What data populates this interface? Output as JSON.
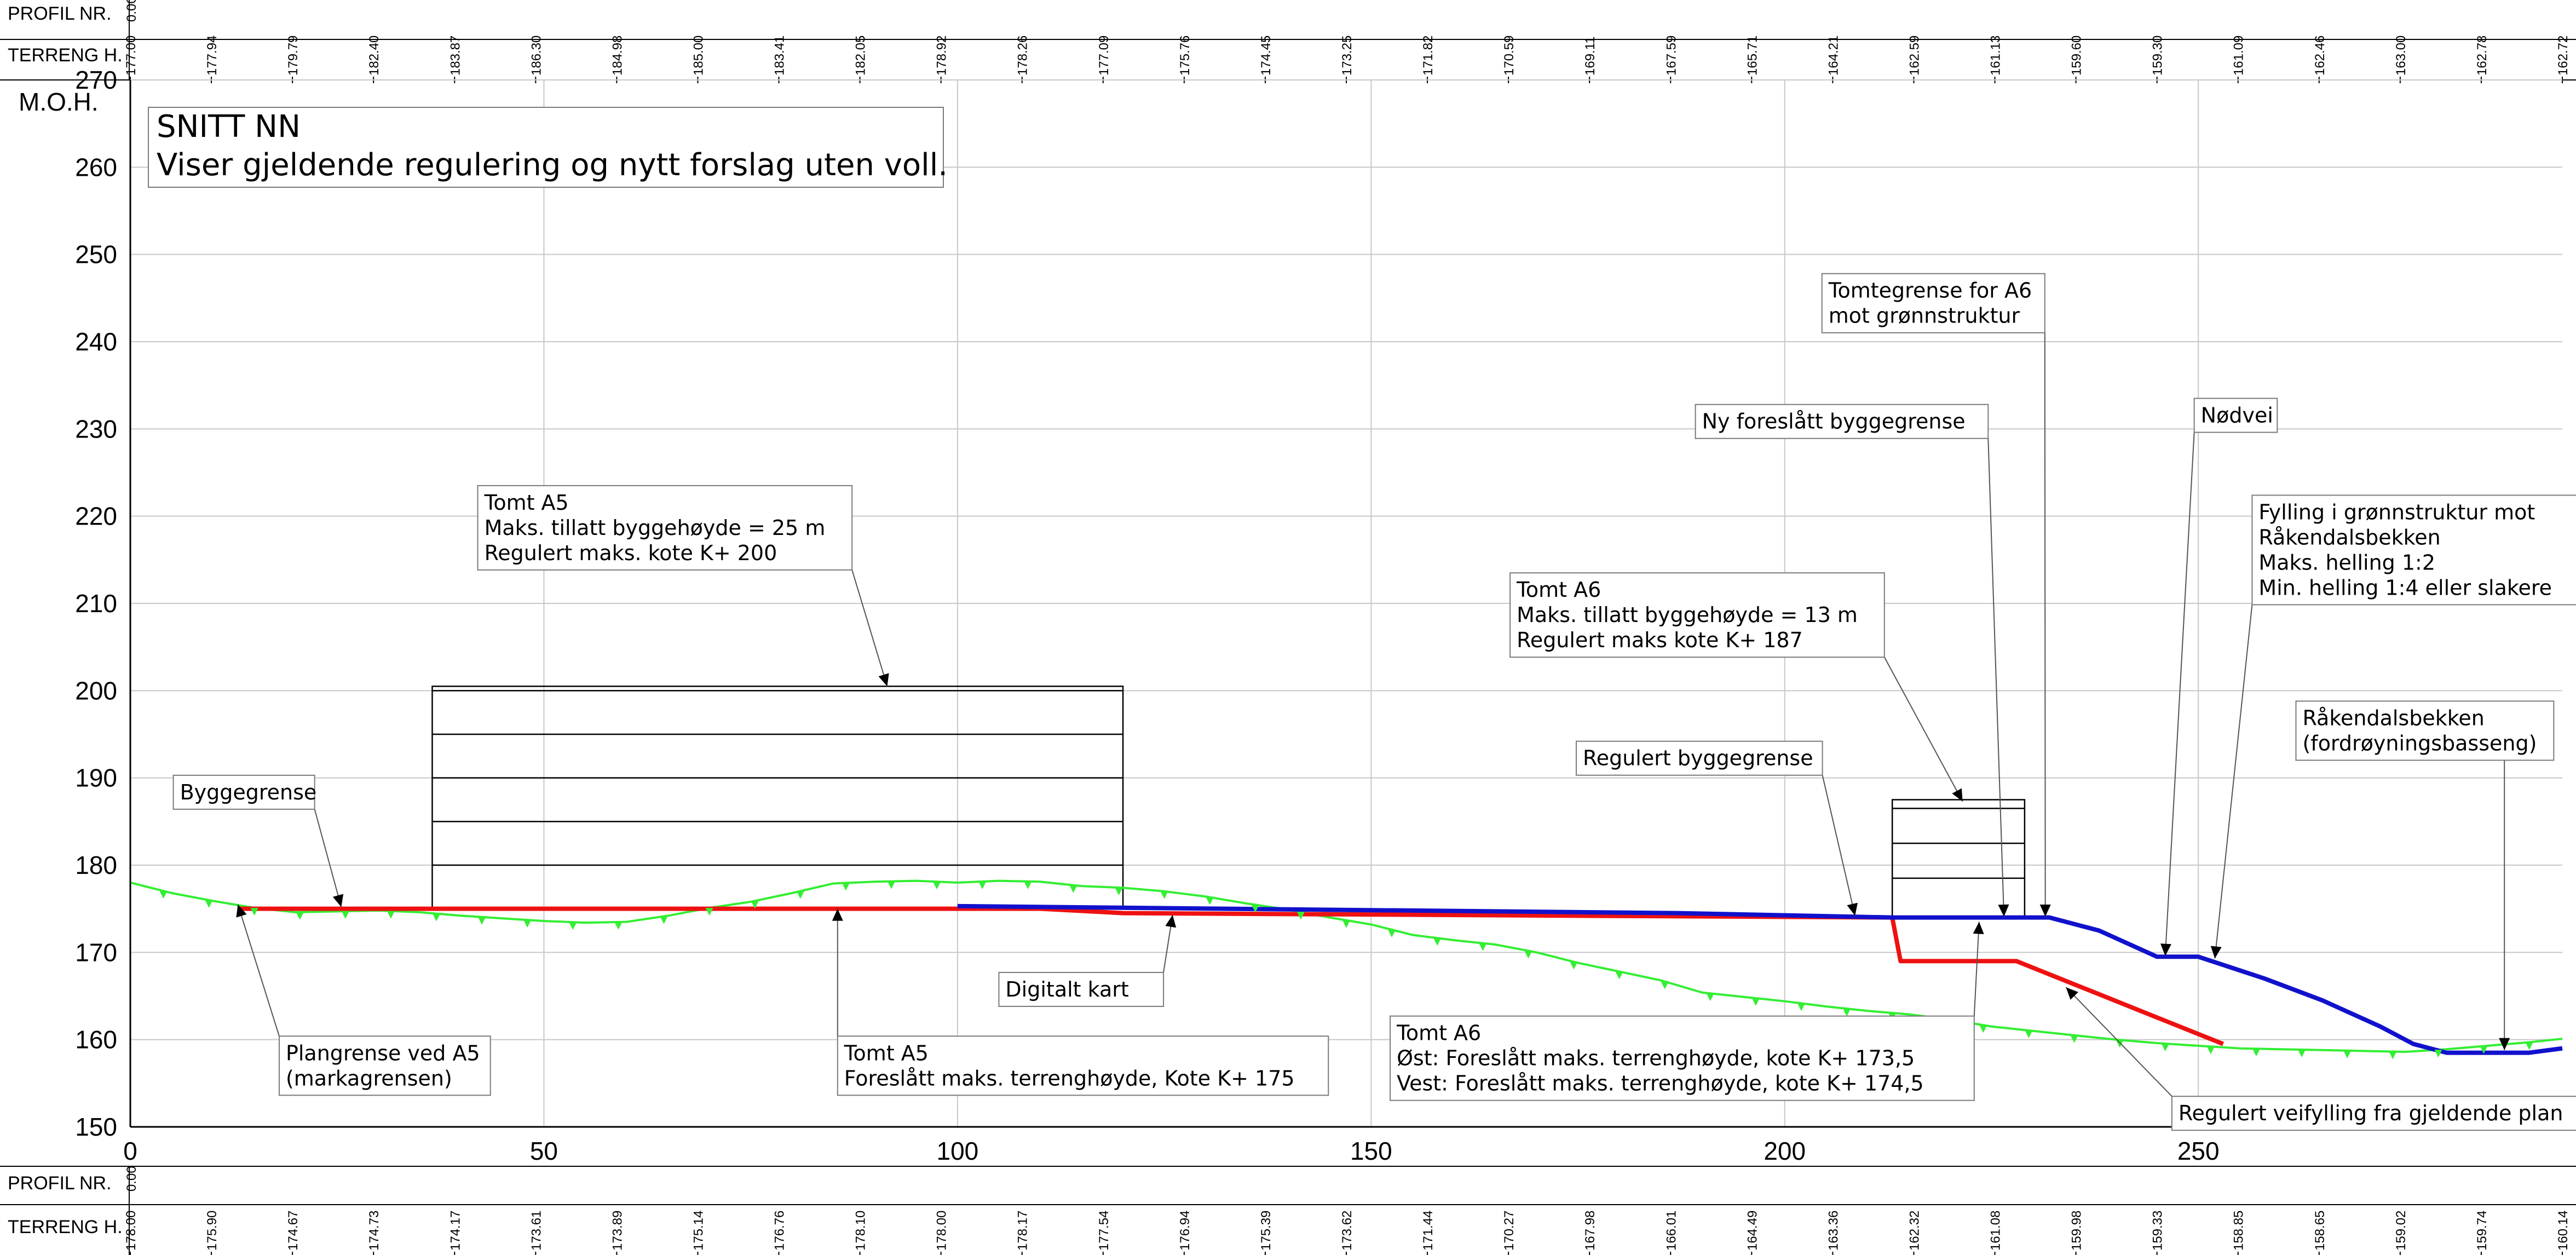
{
  "header_top": {
    "profil_label": "PROFIL NR.",
    "terreng_label": "TERRENG H.",
    "profil_value": "0.00",
    "terrain_values": [
      "177.00",
      "177.94",
      "179.79",
      "182.40",
      "183.87",
      "186.30",
      "184.98",
      "185.00",
      "183.41",
      "182.05",
      "178.92",
      "178.26",
      "177.09",
      "175.76",
      "174.45",
      "173.25",
      "171.82",
      "170.59",
      "169.11",
      "167.59",
      "165.71",
      "164.21",
      "162.59",
      "161.13",
      "159.60",
      "159.30",
      "161.09",
      "162.46",
      "163.00",
      "162.78",
      "162.72"
    ]
  },
  "header_bottom": {
    "profil_label": "PROFIL NR.",
    "terreng_label": "TERRENG H.",
    "profil_value": "0.00",
    "terrain_values": [
      "178.00",
      "175.90",
      "174.67",
      "174.73",
      "174.17",
      "173.61",
      "173.89",
      "175.14",
      "176.76",
      "178.10",
      "178.00",
      "178.17",
      "177.54",
      "176.94",
      "175.39",
      "173.62",
      "171.44",
      "170.27",
      "167.98",
      "166.01",
      "164.49",
      "163.36",
      "162.32",
      "161.08",
      "159.98",
      "159.33",
      "158.85",
      "158.65",
      "159.02",
      "159.74",
      "160.14"
    ]
  },
  "y_axis_title": "M.O.H.",
  "title_box": {
    "line1": "SNITT NN",
    "line2": "Viser gjeldende regulering og nytt forslag uten voll."
  },
  "chart_data": {
    "type": "line",
    "xlim": [
      0,
      294
    ],
    "ylim": [
      150,
      270
    ],
    "x_ticks": [
      0,
      50,
      100,
      150,
      200,
      250
    ],
    "y_ticks": [
      150,
      160,
      170,
      180,
      190,
      200,
      210,
      220,
      230,
      240,
      250,
      260,
      270
    ],
    "grid": true,
    "colors": {
      "terrain": "#33ee33",
      "regulated": "#ee1111",
      "proposed": "#1111cc",
      "frame": "#000000",
      "grid": "#c8c8c8"
    },
    "series": [
      {
        "name": "",
        "color": "#33ee33",
        "x": [
          0,
          5,
          10,
          15,
          20,
          25,
          30,
          35,
          40,
          45,
          50,
          55,
          60,
          65,
          70,
          75,
          80,
          85,
          90,
          95,
          100,
          105,
          110,
          115,
          120,
          125,
          130,
          135,
          140,
          145,
          150,
          155,
          160,
          165,
          170,
          175,
          180,
          185,
          190,
          195,
          200,
          205,
          210,
          215,
          220,
          225,
          230,
          235,
          240,
          245,
          250,
          255,
          260,
          265,
          270,
          275,
          280,
          285,
          290,
          294
        ],
        "y": [
          178.0,
          176.8,
          175.9,
          175.1,
          174.6,
          174.7,
          174.8,
          174.6,
          174.2,
          173.9,
          173.6,
          173.4,
          173.5,
          174.2,
          175.1,
          175.8,
          176.8,
          177.9,
          178.1,
          178.2,
          178.0,
          178.2,
          178.1,
          177.6,
          177.4,
          177.0,
          176.4,
          175.6,
          174.9,
          174.0,
          173.2,
          172.0,
          171.4,
          170.9,
          170.0,
          168.8,
          167.8,
          166.8,
          165.4,
          164.9,
          164.4,
          163.8,
          163.3,
          162.9,
          162.3,
          161.5,
          161.0,
          160.5,
          160.0,
          159.6,
          159.3,
          159.0,
          158.9,
          158.8,
          158.7,
          158.6,
          158.9,
          159.3,
          159.7,
          160.1
        ]
      },
      {
        "name": "",
        "color": "#ee1111",
        "x": [
          13,
          110,
          120,
          213,
          214,
          228,
          253
        ],
        "y": [
          175,
          175,
          174.5,
          174.0,
          169.0,
          169.0,
          159.5
        ]
      },
      {
        "name": "",
        "color": "#1111cc",
        "x": [
          100,
          187,
          213,
          232,
          238,
          245,
          250,
          258,
          265,
          272,
          276,
          280,
          290,
          294
        ],
        "y": [
          175.3,
          174.5,
          174.0,
          174.0,
          172.5,
          169.5,
          169.5,
          167.0,
          164.5,
          161.5,
          159.5,
          158.5,
          158.5,
          159.0
        ]
      }
    ],
    "buildings": [
      {
        "x0": 36.5,
        "x1": 120,
        "y0": 175,
        "y1": 200.5,
        "levels": [
          180,
          185,
          190,
          195,
          200
        ]
      },
      {
        "x0": 213,
        "x1": 229,
        "y0": 174,
        "y1": 187.5,
        "levels": [
          178.5,
          182.5,
          186.5
        ]
      }
    ],
    "callouts": [
      {
        "lines": [
          "Byggegrense"
        ],
        "tx": 5.2,
        "ty": 190.3,
        "ax": 25.5,
        "ay": 175.2
      },
      {
        "lines": [
          "Plangrense ved A5",
          "(markagrensen)"
        ],
        "tx": 18,
        "ty": 160.4,
        "ax": 13,
        "ay": 175.5
      },
      {
        "lines": [
          "Tomt A5",
          "Maks. tillatt byggehøyde = 25 m",
          "Regulert maks. kote K+ 200"
        ],
        "tx": 42,
        "ty": 223.5,
        "ax": 91.5,
        "ay": 200.5
      },
      {
        "lines": [
          "Tomt A5",
          "Foreslått maks. terrenghøyde, Kote K+ 175"
        ],
        "tx": 85.5,
        "ty": 160.4,
        "ax": 85.5,
        "ay": 175
      },
      {
        "lines": [
          "Digitalt kart"
        ],
        "tx": 105,
        "ty": 167.7,
        "ax": 126,
        "ay": 174.3
      },
      {
        "lines": [
          "Tomt A6",
          "Maks. tillatt byggehøyde = 13 m",
          "Regulert maks kote K+ 187"
        ],
        "tx": 166.8,
        "ty": 213.5,
        "ax": 221.5,
        "ay": 187.3
      },
      {
        "lines": [
          "Regulert byggegrense"
        ],
        "tx": 174.8,
        "ty": 194.2,
        "ax": 208.5,
        "ay": 174.2
      },
      {
        "lines": [
          "Ny foreslått byggegrense"
        ],
        "tx": 189.2,
        "ty": 232.8,
        "ax": 226.5,
        "ay": 174.1
      },
      {
        "lines": [
          "Tomtegrense for A6",
          "mot grønnstruktur"
        ],
        "tx": 204.5,
        "ty": 247.8,
        "ax": 231.5,
        "ay": 174.1
      },
      {
        "lines": [
          "Nødvei"
        ],
        "tx": 249.5,
        "ty": 233.5,
        "ax": 246,
        "ay": 169.6
      },
      {
        "lines": [
          "Fylling i grønnstruktur mot",
          "Råkendalsbekken",
          "Maks. helling 1:2",
          "Min. helling 1:4 eller slakere"
        ],
        "tx": 256.5,
        "ty": 222.4,
        "ax": 252,
        "ay": 169.3
      },
      {
        "lines": [
          "Råkendalsbekken",
          "(fordrøyningsbasseng)"
        ],
        "tx": 261.8,
        "ty": 198.8,
        "ax": 287,
        "ay": 158.8
      },
      {
        "lines": [
          "Tomt A6",
          "Øst: Foreslått maks. terrenghøyde, kote K+ 173,5",
          "Vest: Foreslått maks. terrenghøyde, kote K+ 174,5"
        ],
        "tx": 152.3,
        "ty": 162.7,
        "ax": 223.5,
        "ay": 173.5
      },
      {
        "lines": [
          "Regulert veifylling fra gjeldende plan"
        ],
        "tx": 246.8,
        "ty": 153.5,
        "ax": 234,
        "ay": 166
      }
    ]
  }
}
